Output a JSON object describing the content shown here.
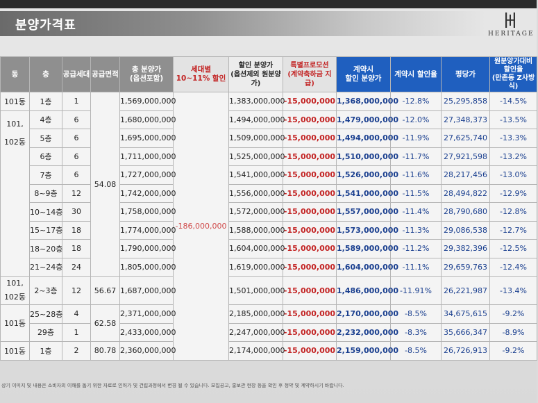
{
  "header": {
    "title": "분양가격표",
    "logo_text": "HERITAGE",
    "logo_icon": "heritage-logo-icon"
  },
  "table": {
    "headers": {
      "dong": "동",
      "floor": "층",
      "units": "공급세대",
      "area": "공급면적",
      "total_price": "총 분양가\n(옵션포함)",
      "household_discount": "세대별\n10~11% 할인",
      "discounted_price": "할인 분양가\n(옵션제외 원분양가)",
      "special_promo": "특별프로모션\n(계약축하금 지급)",
      "contract_price": "계약시\n할인 분양가",
      "contract_rate": "계약시 할인율",
      "price_per_pyeong": "평당가",
      "orig_rate": "원분양가대비\n할인율\n(만촌동 Z사방식)"
    },
    "groups": {
      "g1_dong_a": "101동",
      "g1_dong_b": "101,\n102동",
      "g1_area": "54.08",
      "household_discount_value": "-186,000,000",
      "g2_dong": "101,\n102동",
      "g3_dong": "101동",
      "g3_area": "62.58",
      "g4_dong": "101동"
    },
    "rows": [
      {
        "floor": "1층",
        "units": "1",
        "total": "1,569,000,000",
        "discounted": "1,383,000,000",
        "promo": "-15,000,000",
        "contract": "1,368,000,000",
        "rate": "-12.8%",
        "ppy": "25,295,858",
        "orig": "-14.5%"
      },
      {
        "floor": "4층",
        "units": "6",
        "total": "1,680,000,000",
        "discounted": "1,494,000,000",
        "promo": "-15,000,000",
        "contract": "1,479,000,000",
        "rate": "-12.0%",
        "ppy": "27,348,373",
        "orig": "-13.5%"
      },
      {
        "floor": "5층",
        "units": "6",
        "total": "1,695,000,000",
        "discounted": "1,509,000,000",
        "promo": "-15,000,000",
        "contract": "1,494,000,000",
        "rate": "-11.9%",
        "ppy": "27,625,740",
        "orig": "-13.3%"
      },
      {
        "floor": "6층",
        "units": "6",
        "total": "1,711,000,000",
        "discounted": "1,525,000,000",
        "promo": "-15,000,000",
        "contract": "1,510,000,000",
        "rate": "-11.7%",
        "ppy": "27,921,598",
        "orig": "-13.2%"
      },
      {
        "floor": "7층",
        "units": "6",
        "total": "1,727,000,000",
        "discounted": "1,541,000,000",
        "promo": "-15,000,000",
        "contract": "1,526,000,000",
        "rate": "-11.6%",
        "ppy": "28,217,456",
        "orig": "-13.0%"
      },
      {
        "floor": "8~9층",
        "units": "12",
        "total": "1,742,000,000",
        "discounted": "1,556,000,000",
        "promo": "-15,000,000",
        "contract": "1,541,000,000",
        "rate": "-11.5%",
        "ppy": "28,494,822",
        "orig": "-12.9%"
      },
      {
        "floor": "10~14층",
        "units": "30",
        "total": "1,758,000,000",
        "discounted": "1,572,000,000",
        "promo": "-15,000,000",
        "contract": "1,557,000,000",
        "rate": "-11.4%",
        "ppy": "28,790,680",
        "orig": "-12.8%"
      },
      {
        "floor": "15~17층",
        "units": "18",
        "total": "1,774,000,000",
        "discounted": "1,588,000,000",
        "promo": "-15,000,000",
        "contract": "1,573,000,000",
        "rate": "-11.3%",
        "ppy": "29,086,538",
        "orig": "-12.7%"
      },
      {
        "floor": "18~20층",
        "units": "18",
        "total": "1,790,000,000",
        "discounted": "1,604,000,000",
        "promo": "-15,000,000",
        "contract": "1,589,000,000",
        "rate": "-11.2%",
        "ppy": "29,382,396",
        "orig": "-12.5%"
      },
      {
        "floor": "21~24층",
        "units": "24",
        "total": "1,805,000,000",
        "discounted": "1,619,000,000",
        "promo": "-15,000,000",
        "contract": "1,604,000,000",
        "rate": "-11.1%",
        "ppy": "29,659,763",
        "orig": "-12.4%"
      },
      {
        "floor": "2~3층",
        "units": "12",
        "area": "56.67",
        "total": "1,687,000,000",
        "discounted": "1,501,000,000",
        "promo": "-15,000,000",
        "contract": "1,486,000,000",
        "rate": "-11.91%",
        "ppy": "26,221,987",
        "orig": "-13.4%"
      },
      {
        "floor": "25~28층",
        "units": "4",
        "total": "2,371,000,000",
        "discounted": "2,185,000,000",
        "promo": "-15,000,000",
        "contract": "2,170,000,000",
        "rate": "-8.5%",
        "ppy": "34,675,615",
        "orig": "-9.2%"
      },
      {
        "floor": "29층",
        "units": "1",
        "total": "2,433,000,000",
        "discounted": "2,247,000,000",
        "promo": "-15,000,000",
        "contract": "2,232,000,000",
        "rate": "-8.3%",
        "ppy": "35,666,347",
        "orig": "-8.9%"
      },
      {
        "floor": "1층",
        "units": "2",
        "area": "80.78",
        "total": "2,360,000,000",
        "discounted": "2,174,000,000",
        "promo": "-15,000,000",
        "contract": "2,159,000,000",
        "rate": "-8.5%",
        "ppy": "26,726,913",
        "orig": "-9.2%"
      }
    ]
  },
  "footer": "상기 이미지 및 내용은 소비자의 이해를 돕기 위한 자료로 인허가 및 건립과정에서 변경 될 수 있습니다. 모집공고, 홍보관 현장 등을 확인 후 청약 및 계약하시기 바랍니다.",
  "colors": {
    "header_gray": "#8f8f8f",
    "header_blue": "#1f5fbf",
    "discount_red": "#c32424",
    "value_blue": "#1a3f8f"
  }
}
